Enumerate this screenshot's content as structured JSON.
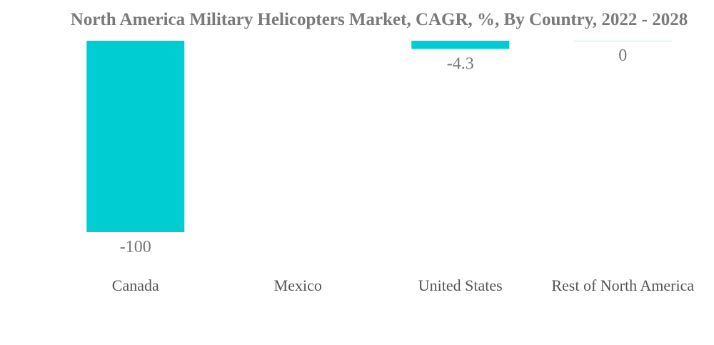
{
  "chart_data": {
    "type": "bar",
    "title": "North America Military Helicopters Market, CAGR, %, By Country, 2022 - 2028",
    "xlabel": "",
    "ylabel": "",
    "categories": [
      "Canada",
      "Mexico",
      "United States",
      "Rest of North America"
    ],
    "series": [
      {
        "values": [
          -100,
          null,
          -4.3,
          0
        ],
        "data_labels": [
          "-100",
          "",
          "-4.3",
          "0"
        ]
      }
    ],
    "ylim": [
      -100,
      0
    ],
    "grid": false,
    "legend": "none",
    "colors": {
      "bar": "#00cdd1",
      "zero_bar": "#b9ecee",
      "title": "#7a7a7a",
      "data_label": "#777777",
      "tick_label": "#555555"
    }
  }
}
